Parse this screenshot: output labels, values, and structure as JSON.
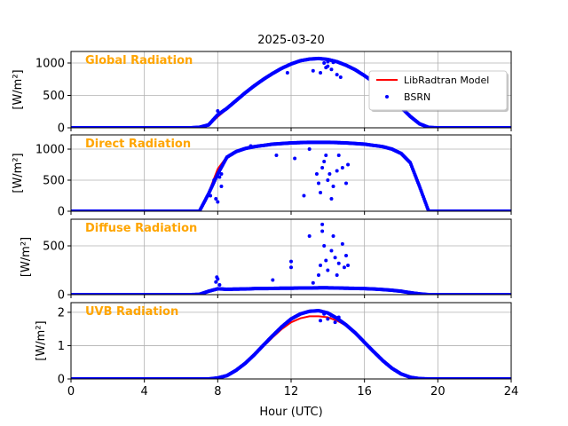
{
  "chart_data": {
    "type": "line",
    "title": "2025-03-20",
    "xlabel": "Hour (UTC)",
    "xlim": [
      0,
      24
    ],
    "xticks": [
      0,
      4,
      8,
      12,
      16,
      20,
      24
    ],
    "grid": true,
    "legend": {
      "placement": "top-right of first panel",
      "entries": [
        "LibRadtran Model",
        "BSRN"
      ]
    },
    "colors": {
      "model": "#ff0000",
      "bsrn": "#0000ff",
      "panel_label": "#ffa500"
    },
    "x": [
      0,
      0.5,
      1,
      1.5,
      2,
      2.5,
      3,
      3.5,
      4,
      4.5,
      5,
      5.5,
      6,
      6.5,
      7,
      7.5,
      8,
      8.5,
      9,
      9.5,
      10,
      10.5,
      11,
      11.5,
      12,
      12.5,
      13,
      13.5,
      14,
      14.5,
      15,
      15.5,
      16,
      16.5,
      17,
      17.5,
      18,
      18.5,
      19,
      19.5,
      20,
      20.5,
      21,
      21.5,
      22,
      22.5,
      23,
      23.5,
      24
    ],
    "panels": [
      {
        "label": "Global Radiation",
        "ylabel": "[W/m²]",
        "ylim": [
          0,
          1178
        ],
        "yticks": [
          0,
          500,
          1000
        ],
        "model": [
          0,
          0,
          0,
          0,
          0,
          0,
          0,
          0,
          0,
          0,
          0,
          0,
          0,
          0,
          5,
          40,
          170,
          290,
          410,
          530,
          640,
          740,
          830,
          910,
          975,
          1025,
          1055,
          1065,
          1050,
          1015,
          960,
          890,
          800,
          700,
          580,
          450,
          310,
          170,
          60,
          5,
          0,
          0,
          0,
          0,
          0,
          0,
          0,
          0,
          0
        ],
        "bsrn": [
          0,
          0,
          0,
          0,
          0,
          0,
          0,
          0,
          0,
          0,
          0,
          0,
          0,
          0,
          8,
          45,
          200,
          300,
          420,
          540,
          650,
          750,
          840,
          920,
          985,
          1035,
          1060,
          1070,
          1055,
          1020,
          965,
          895,
          805,
          705,
          585,
          455,
          315,
          175,
          62,
          6,
          0,
          0,
          0,
          0,
          0,
          0,
          0,
          0,
          0
        ],
        "outliers": [
          [
            8.0,
            260
          ],
          [
            11.8,
            850
          ],
          [
            13.2,
            880
          ],
          [
            13.6,
            850
          ],
          [
            13.8,
            1000
          ],
          [
            14.0,
            950
          ],
          [
            14.2,
            900
          ],
          [
            14.3,
            1010
          ],
          [
            14.5,
            820
          ],
          [
            14.7,
            780
          ],
          [
            14.0,
            1020
          ],
          [
            13.9,
            930
          ]
        ]
      },
      {
        "label": "Direct Radiation",
        "ylabel": "[W/m²]",
        "ylim": [
          0,
          1229
        ],
        "yticks": [
          0,
          500,
          1000
        ],
        "model": [
          0,
          0,
          0,
          0,
          0,
          0,
          0,
          0,
          0,
          0,
          0,
          0,
          0,
          0,
          0,
          300,
          680,
          880,
          960,
          1010,
          1040,
          1060,
          1080,
          1090,
          1100,
          1105,
          1110,
          1110,
          1110,
          1105,
          1100,
          1090,
          1080,
          1060,
          1040,
          1000,
          930,
          780,
          400,
          0,
          0,
          0,
          0,
          0,
          0,
          0,
          0,
          0,
          0
        ],
        "bsrn": [
          0,
          0,
          0,
          0,
          0,
          0,
          0,
          0,
          0,
          0,
          0,
          0,
          0,
          0,
          0,
          280,
          600,
          870,
          960,
          1010,
          1040,
          1060,
          1080,
          1090,
          1100,
          1105,
          1110,
          1110,
          1110,
          1105,
          1100,
          1090,
          1080,
          1060,
          1040,
          1000,
          930,
          780,
          400,
          0,
          0,
          0,
          0,
          0,
          0,
          0,
          0,
          0,
          0
        ],
        "outliers": [
          [
            7.8,
            500
          ],
          [
            7.9,
            200
          ],
          [
            8.0,
            150
          ],
          [
            8.1,
            550
          ],
          [
            8.2,
            400
          ],
          [
            8.2,
            600
          ],
          [
            7.6,
            250
          ],
          [
            9.8,
            1050
          ],
          [
            11.2,
            900
          ],
          [
            12.2,
            850
          ],
          [
            12.7,
            250
          ],
          [
            13.0,
            1000
          ],
          [
            13.4,
            600
          ],
          [
            13.5,
            450
          ],
          [
            13.6,
            300
          ],
          [
            13.7,
            700
          ],
          [
            13.8,
            800
          ],
          [
            14.0,
            500
          ],
          [
            14.1,
            600
          ],
          [
            14.3,
            400
          ],
          [
            14.5,
            650
          ],
          [
            14.6,
            900
          ],
          [
            14.8,
            700
          ],
          [
            15.0,
            450
          ],
          [
            15.1,
            750
          ],
          [
            14.2,
            200
          ],
          [
            13.9,
            900
          ]
        ]
      },
      {
        "label": "Diffuse Radiation",
        "ylabel": "[W/m²]",
        "ylim": [
          0,
          773
        ],
        "yticks": [
          0,
          500
        ],
        "model": [
          0,
          0,
          0,
          0,
          0,
          0,
          0,
          0,
          0,
          0,
          0,
          0,
          0,
          0,
          2,
          30,
          55,
          55,
          57,
          58,
          60,
          62,
          63,
          64,
          65,
          66,
          66,
          66,
          66,
          65,
          64,
          63,
          62,
          58,
          52,
          45,
          35,
          20,
          8,
          0,
          0,
          0,
          0,
          0,
          0,
          0,
          0,
          0,
          0
        ],
        "bsrn": [
          0,
          0,
          0,
          0,
          0,
          0,
          0,
          0,
          0,
          0,
          0,
          0,
          0,
          0,
          3,
          35,
          60,
          55,
          57,
          58,
          62,
          62,
          64,
          66,
          66,
          68,
          68,
          70,
          70,
          68,
          66,
          64,
          62,
          58,
          52,
          45,
          35,
          20,
          8,
          0,
          0,
          0,
          0,
          0,
          0,
          0,
          0,
          0,
          0
        ],
        "outliers": [
          [
            8.0,
            160
          ],
          [
            7.9,
            130
          ],
          [
            8.1,
            100
          ],
          [
            7.95,
            180
          ],
          [
            11.0,
            150
          ],
          [
            12.0,
            340
          ],
          [
            12.0,
            280
          ],
          [
            13.0,
            600
          ],
          [
            13.2,
            120
          ],
          [
            13.5,
            200
          ],
          [
            13.7,
            720
          ],
          [
            13.7,
            650
          ],
          [
            13.8,
            500
          ],
          [
            13.9,
            350
          ],
          [
            14.0,
            250
          ],
          [
            14.2,
            450
          ],
          [
            14.3,
            600
          ],
          [
            14.4,
            380
          ],
          [
            14.6,
            320
          ],
          [
            14.8,
            520
          ],
          [
            14.9,
            280
          ],
          [
            15.0,
            400
          ],
          [
            15.1,
            300
          ],
          [
            14.5,
            200
          ],
          [
            13.6,
            300
          ]
        ]
      },
      {
        "label": "UVB Radiation",
        "ylabel": "[W/m²]",
        "ylim": [
          0,
          2.29
        ],
        "yticks": [
          0,
          1,
          2
        ],
        "model": [
          0,
          0,
          0,
          0,
          0,
          0,
          0,
          0,
          0,
          0,
          0,
          0,
          0,
          0,
          0,
          0,
          0.02,
          0.1,
          0.25,
          0.45,
          0.7,
          0.98,
          1.25,
          1.5,
          1.7,
          1.82,
          1.88,
          1.88,
          1.85,
          1.75,
          1.6,
          1.38,
          1.1,
          0.82,
          0.55,
          0.32,
          0.15,
          0.05,
          0.01,
          0,
          0,
          0,
          0,
          0,
          0,
          0,
          0,
          0,
          0
        ],
        "bsrn": [
          0,
          0,
          0,
          0,
          0,
          0,
          0,
          0,
          0,
          0,
          0,
          0,
          0,
          0,
          0,
          0,
          0.03,
          0.1,
          0.26,
          0.47,
          0.73,
          1.02,
          1.3,
          1.57,
          1.8,
          1.95,
          2.03,
          2.05,
          1.98,
          1.82,
          1.62,
          1.38,
          1.1,
          0.82,
          0.55,
          0.32,
          0.15,
          0.05,
          0.01,
          0,
          0,
          0,
          0,
          0,
          0,
          0,
          0,
          0,
          0
        ],
        "outliers": [
          [
            13.6,
            1.75
          ],
          [
            13.8,
            1.95
          ],
          [
            14.0,
            1.8
          ],
          [
            14.2,
            1.9
          ],
          [
            14.4,
            1.7
          ],
          [
            14.6,
            1.85
          ]
        ]
      }
    ]
  }
}
